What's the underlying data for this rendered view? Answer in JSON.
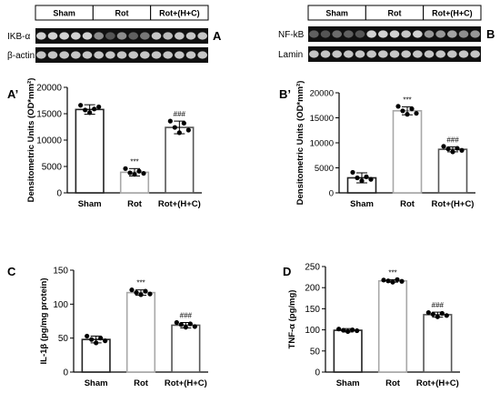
{
  "blots": [
    {
      "panel_label": "A",
      "groups": [
        "Sham",
        "Rot",
        "Rot+(H+C)"
      ],
      "rows": [
        {
          "label": "IKB-α",
          "lane_intensity": [
            0.85,
            0.85,
            0.85,
            0.85,
            0.85,
            0.55,
            0.3,
            0.55,
            0.35,
            0.45,
            0.8,
            0.75,
            0.8,
            0.8,
            0.8
          ]
        },
        {
          "label": "β-actin",
          "lane_intensity": [
            0.8,
            0.8,
            0.8,
            0.8,
            0.8,
            0.8,
            0.8,
            0.8,
            0.8,
            0.8,
            0.8,
            0.8,
            0.8,
            0.8,
            0.8
          ]
        }
      ]
    },
    {
      "panel_label": "B",
      "groups": [
        "Sham",
        "Rot",
        "Rot+(H+C)"
      ],
      "rows": [
        {
          "label": "NF-kB",
          "lane_intensity": [
            0.35,
            0.3,
            0.4,
            0.35,
            0.3,
            0.85,
            0.85,
            0.85,
            0.8,
            0.85,
            0.6,
            0.6,
            0.65,
            0.55,
            0.6
          ]
        },
        {
          "label": "Lamin",
          "lane_intensity": [
            0.8,
            0.8,
            0.8,
            0.8,
            0.8,
            0.8,
            0.8,
            0.8,
            0.8,
            0.8,
            0.8,
            0.8,
            0.8,
            0.8,
            0.8
          ]
        }
      ]
    }
  ],
  "chart_data": [
    {
      "type": "bar",
      "panel_label": "A’",
      "ylabel": "Densitometric Units (OD*mm²)",
      "categories": [
        "Sham",
        "Rot",
        "Rot+(H+C)"
      ],
      "values": [
        15800,
        3900,
        12400
      ],
      "errors": [
        900,
        700,
        1200
      ],
      "points": [
        [
          16600,
          15700,
          15200,
          15900,
          16300
        ],
        [
          4600,
          3800,
          3500,
          4100,
          3700
        ],
        [
          13600,
          12400,
          11400,
          13200,
          11900
        ]
      ],
      "annotations": [
        "",
        "***",
        "###"
      ],
      "ylim": [
        0,
        20000
      ],
      "yticks": [
        0,
        5000,
        10000,
        15000,
        20000
      ],
      "bar_colors": [
        "#222222",
        "#a8a8a8",
        "#555555"
      ]
    },
    {
      "type": "bar",
      "panel_label": "B’",
      "ylabel": "Densitometric Units (OD*mm²)",
      "categories": [
        "Sham",
        "Rot",
        "Rot+(H+C)"
      ],
      "values": [
        3000,
        16400,
        8700
      ],
      "errors": [
        1000,
        800,
        500
      ],
      "points": [
        [
          4100,
          3000,
          2400,
          3200,
          2700
        ],
        [
          17300,
          16400,
          15700,
          16800,
          15900
        ],
        [
          9300,
          8800,
          8200,
          8900,
          8500
        ]
      ],
      "annotations": [
        "",
        "***",
        "###"
      ],
      "ylim": [
        0,
        20000
      ],
      "yticks": [
        0,
        5000,
        10000,
        15000,
        20000
      ],
      "bar_colors": [
        "#222222",
        "#a8a8a8",
        "#555555"
      ]
    },
    {
      "type": "bar",
      "panel_label": "C",
      "ylabel": "IL-1β (pg/mg protein)",
      "categories": [
        "Sham",
        "Rot",
        "Rot+(H+C)"
      ],
      "values": [
        48,
        117,
        69
      ],
      "errors": [
        5,
        4,
        4
      ],
      "points": [
        [
          53,
          48,
          43,
          50,
          46
        ],
        [
          121,
          117,
          114,
          119,
          115
        ],
        [
          73,
          70,
          66,
          71,
          67
        ]
      ],
      "annotations": [
        "",
        "***",
        "###"
      ],
      "ylim": [
        0,
        150
      ],
      "yticks": [
        0,
        50,
        100,
        150
      ],
      "bar_colors": [
        "#222222",
        "#a8a8a8",
        "#555555"
      ]
    },
    {
      "type": "bar",
      "panel_label": "D",
      "ylabel": "TNF-α (pg/mg)",
      "categories": [
        "Sham",
        "Rot",
        "Rot+(H+C)"
      ],
      "values": [
        99,
        216,
        136
      ],
      "errors": [
        4,
        3,
        6
      ],
      "points": [
        [
          102,
          99,
          96,
          100,
          98
        ],
        [
          218,
          216,
          213,
          219,
          215
        ],
        [
          141,
          137,
          131,
          139,
          134
        ]
      ],
      "annotations": [
        "",
        "***",
        "###"
      ],
      "ylim": [
        0,
        250
      ],
      "yticks": [
        0,
        50,
        100,
        150,
        200,
        250
      ],
      "bar_colors": [
        "#222222",
        "#a8a8a8",
        "#555555"
      ]
    }
  ]
}
